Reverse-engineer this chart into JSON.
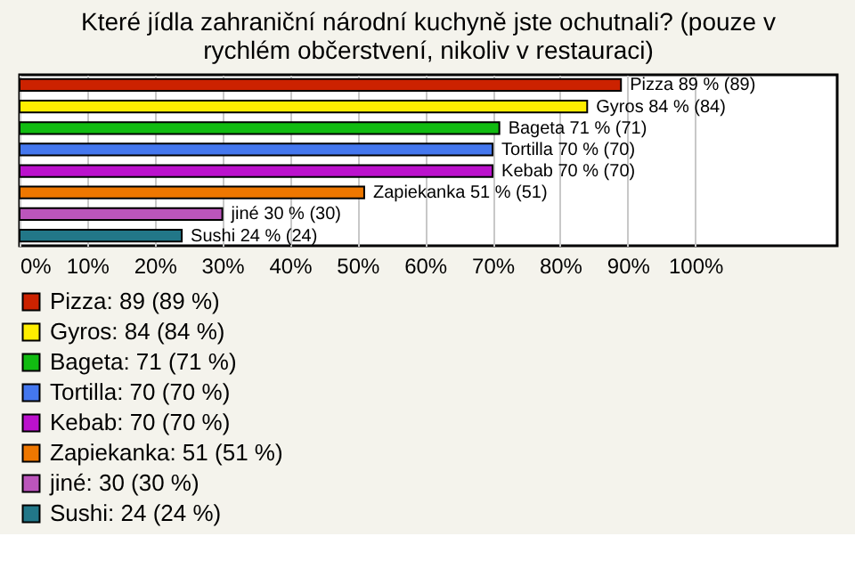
{
  "chart_data": {
    "type": "bar",
    "orientation": "horizontal",
    "title": "Které jídla zahraniční národní kuchyně jste ochutnali? (pouze v rychlém občerstvení, nikoliv v restauraci)",
    "categories": [
      null,
      null,
      null,
      null,
      null,
      null,
      null,
      null
    ],
    "series": [
      {
        "name": "Pizza: 89 (89 %)",
        "color": "#cc2200",
        "values": [
          89,
          null,
          null,
          null,
          null,
          null,
          null,
          null
        ],
        "value_labels": [
          "Pizza 89 % (89)",
          null,
          null,
          null,
          null,
          null,
          null,
          null
        ]
      },
      {
        "name": "Gyros: 84 (84 %)",
        "color": "#ffee00",
        "values": [
          null,
          84,
          null,
          null,
          null,
          null,
          null,
          null
        ],
        "value_labels": [
          null,
          "Gyros 84 % (84)",
          null,
          null,
          null,
          null,
          null,
          null
        ]
      },
      {
        "name": "Bageta: 71 (71 %)",
        "color": "#11bb11",
        "values": [
          null,
          null,
          71,
          null,
          null,
          null,
          null,
          null
        ],
        "value_labels": [
          null,
          null,
          "Bageta 71 % (71)",
          null,
          null,
          null,
          null,
          null
        ]
      },
      {
        "name": "Tortilla: 70 (70 %)",
        "color": "#4477ee",
        "values": [
          null,
          null,
          null,
          70,
          null,
          null,
          null,
          null
        ],
        "value_labels": [
          null,
          null,
          null,
          "Tortilla 70 % (70)",
          null,
          null,
          null,
          null
        ]
      },
      {
        "name": "Kebab: 70 (70 %)",
        "color": "#bb11cc",
        "values": [
          null,
          null,
          null,
          null,
          70,
          null,
          null,
          null
        ],
        "value_labels": [
          null,
          null,
          null,
          null,
          "Kebab 70 % (70)",
          null,
          null,
          null
        ]
      },
      {
        "name": "Zapiekanka: 51 (51 %)",
        "color": "#ee7700",
        "values": [
          null,
          null,
          null,
          null,
          null,
          51,
          null,
          null
        ],
        "value_labels": [
          null,
          null,
          null,
          null,
          null,
          "Zapiekanka 51 % (51)",
          null,
          null
        ]
      },
      {
        "name": "jiné: 30 (30 %)",
        "color": "#bb55bb",
        "values": [
          null,
          null,
          null,
          null,
          null,
          null,
          30,
          null
        ],
        "value_labels": [
          null,
          null,
          null,
          null,
          null,
          null,
          "jiné 30 % (30)",
          null
        ]
      },
      {
        "name": "Sushi: 24 (24 %)",
        "color": "#227788",
        "values": [
          null,
          null,
          null,
          null,
          null,
          null,
          null,
          24
        ],
        "value_labels": [
          null,
          null,
          null,
          null,
          null,
          null,
          null,
          "Sushi 24 % (24)"
        ]
      }
    ],
    "xlim": [
      0,
      121
    ],
    "xticks": [
      {
        "value": 0,
        "label": "0%"
      },
      {
        "value": 10,
        "label": "10%"
      },
      {
        "value": 20,
        "label": "20%"
      },
      {
        "value": 30,
        "label": "30%"
      },
      {
        "value": 40,
        "label": "40%"
      },
      {
        "value": 50,
        "label": "50%"
      },
      {
        "value": 60,
        "label": "60%"
      },
      {
        "value": 70,
        "label": "70%"
      },
      {
        "value": 80,
        "label": "80%"
      },
      {
        "value": 90,
        "label": "90%"
      },
      {
        "value": 100,
        "label": "100%"
      }
    ],
    "grid": "x",
    "legend": "bottom",
    "tick_labels": "x"
  }
}
